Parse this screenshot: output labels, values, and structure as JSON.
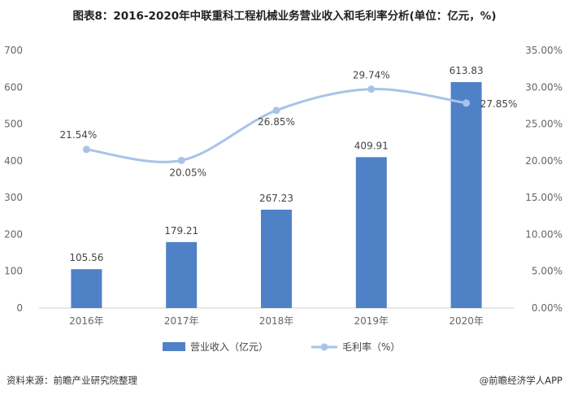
{
  "title": "图表8：2016-2020年中联重科工程机械业务营业收入和毛利率分析(单位：亿元，%)",
  "footer": {
    "source": "资料来源：前瞻产业研究院整理",
    "brand": "@前瞻经济学人APP"
  },
  "chart_data": {
    "type": "bar+line",
    "categories": [
      "2016年",
      "2017年",
      "2018年",
      "2019年",
      "2020年"
    ],
    "series": [
      {
        "name": "营业收入（亿元）",
        "type": "bar",
        "axis": "left",
        "values": [
          105.56,
          179.21,
          267.23,
          409.91,
          613.83
        ],
        "labels": [
          "105.56",
          "179.21",
          "267.23",
          "409.91",
          "613.83"
        ],
        "color": "#4f81c7"
      },
      {
        "name": "毛利率（%）",
        "type": "line",
        "axis": "right",
        "values": [
          21.54,
          20.05,
          26.85,
          29.74,
          27.85
        ],
        "labels": [
          "21.54%",
          "20.05%",
          "26.85%",
          "29.74%",
          "27.85%"
        ],
        "color": "#a9c3e8"
      }
    ],
    "y_left": {
      "min": 0,
      "max": 700,
      "ticks": [
        "0",
        "100",
        "200",
        "300",
        "400",
        "500",
        "600",
        "700"
      ]
    },
    "y_right": {
      "min": 0,
      "max": 35,
      "ticks": [
        "0.00%",
        "5.00%",
        "10.00%",
        "15.00%",
        "20.00%",
        "25.00%",
        "30.00%",
        "35.00%"
      ]
    },
    "legend": "bottom",
    "grid": false
  }
}
